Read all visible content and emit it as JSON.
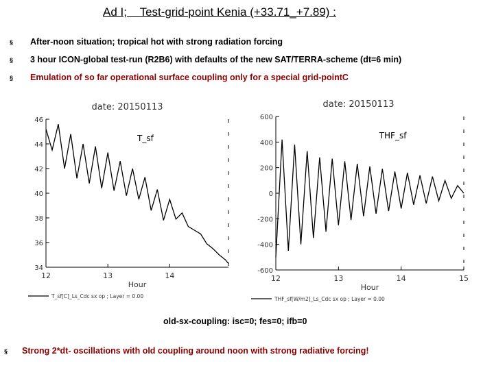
{
  "slide": {
    "title_prefix": "Ad I;",
    "title_main": "Test-grid-point Kenia (+33.71_+7.89) :",
    "bullet_marker": "§",
    "bullets": [
      "After-noon situation; tropical hot with strong radiation forcing",
      "3 hour ICON-global test-run (R2B6) with defaults of the new SAT/TERRA-scheme (dt=6 min)",
      "Emulation of so far operational surface coupling only for a special grid-pointC"
    ],
    "caption": "old-sx-coupling: isc=0; fes=0; ifb=0",
    "conclusion": "Strong 2*dt- oscillations with old coupling around noon with strong radiative forcing!"
  },
  "chart_data": [
    {
      "type": "line",
      "date_label": "date: 20150113",
      "title": "T_sf",
      "xlabel": "Hour",
      "ylabel": "",
      "xlim": [
        12,
        14.95
      ],
      "ylim": [
        34,
        46
      ],
      "xticks": [
        12,
        13,
        14
      ],
      "yticks": [
        34,
        36,
        38,
        40,
        42,
        44,
        46
      ],
      "legend": "T_sf[C]_Ls_Cdc    sx    op ;  Layer  =    0.00",
      "series": [
        {
          "name": "T_sf",
          "x": [
            12.0,
            12.1,
            12.2,
            12.3,
            12.4,
            12.5,
            12.6,
            12.7,
            12.8,
            12.9,
            13.0,
            13.1,
            13.2,
            13.3,
            13.4,
            13.5,
            13.6,
            13.7,
            13.8,
            13.9,
            14.0,
            14.1,
            14.2,
            14.3,
            14.4,
            14.5,
            14.6,
            14.7,
            14.8,
            14.9,
            14.95
          ],
          "y": [
            45.2,
            43.5,
            45.6,
            42.0,
            44.8,
            41.2,
            44.0,
            40.8,
            43.8,
            40.4,
            43.3,
            40.2,
            42.6,
            39.8,
            42.0,
            39.5,
            41.3,
            38.6,
            40.3,
            37.8,
            39.5,
            37.9,
            38.4,
            37.3,
            37.0,
            36.7,
            35.9,
            35.5,
            35.0,
            34.6,
            34.3
          ]
        }
      ]
    },
    {
      "type": "line",
      "date_label": "date: 20150113",
      "title": "THF_sf",
      "xlabel": "Hour",
      "ylabel": "",
      "xlim": [
        12,
        15
      ],
      "ylim": [
        -600,
        600
      ],
      "xticks": [
        12,
        13,
        14,
        15
      ],
      "yticks": [
        -600,
        -400,
        -200,
        0,
        200,
        400,
        600
      ],
      "legend": "THF_sf[W/m2]_Ls_Cdc    sx    op ;  Layer  =    0.00",
      "series": [
        {
          "name": "THF_sf",
          "x": [
            12.0,
            12.1,
            12.2,
            12.3,
            12.4,
            12.5,
            12.6,
            12.7,
            12.8,
            12.9,
            13.0,
            13.1,
            13.2,
            13.3,
            13.4,
            13.5,
            13.6,
            13.7,
            13.8,
            13.9,
            14.0,
            14.1,
            14.2,
            14.3,
            14.4,
            14.5,
            14.6,
            14.7,
            14.8,
            14.9,
            15.0
          ],
          "y": [
            -500,
            420,
            -450,
            380,
            -400,
            330,
            -350,
            280,
            -300,
            270,
            -250,
            250,
            -210,
            230,
            -180,
            210,
            -160,
            190,
            -140,
            170,
            -120,
            160,
            -90,
            140,
            -80,
            130,
            -60,
            100,
            -40,
            60,
            0
          ]
        }
      ]
    }
  ]
}
